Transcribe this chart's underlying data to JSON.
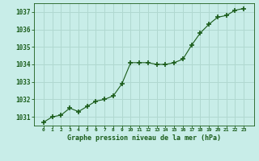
{
  "x": [
    0,
    1,
    2,
    3,
    4,
    5,
    6,
    7,
    8,
    9,
    10,
    11,
    12,
    13,
    14,
    15,
    16,
    17,
    18,
    19,
    20,
    21,
    22,
    23
  ],
  "y": [
    1030.7,
    1031.0,
    1031.1,
    1031.5,
    1031.3,
    1031.6,
    1031.9,
    1032.0,
    1032.2,
    1032.9,
    1034.1,
    1034.1,
    1034.1,
    1034.0,
    1034.0,
    1034.1,
    1034.3,
    1035.1,
    1035.8,
    1036.3,
    1036.7,
    1036.8,
    1037.1,
    1037.2
  ],
  "line_color": "#1a5c1a",
  "marker_color": "#1a5c1a",
  "bg_color": "#c8ede8",
  "grid_color": "#b0d8d0",
  "xlabel": "Graphe pression niveau de la mer (hPa)",
  "xlabel_color": "#1a5c1a",
  "tick_color": "#1a5c1a",
  "ylim": [
    1030.5,
    1037.5
  ],
  "yticks": [
    1031,
    1032,
    1033,
    1034,
    1035,
    1036,
    1037
  ],
  "xticks": [
    0,
    1,
    2,
    3,
    4,
    5,
    6,
    7,
    8,
    9,
    10,
    11,
    12,
    13,
    14,
    15,
    16,
    17,
    18,
    19,
    20,
    21,
    22,
    23
  ]
}
